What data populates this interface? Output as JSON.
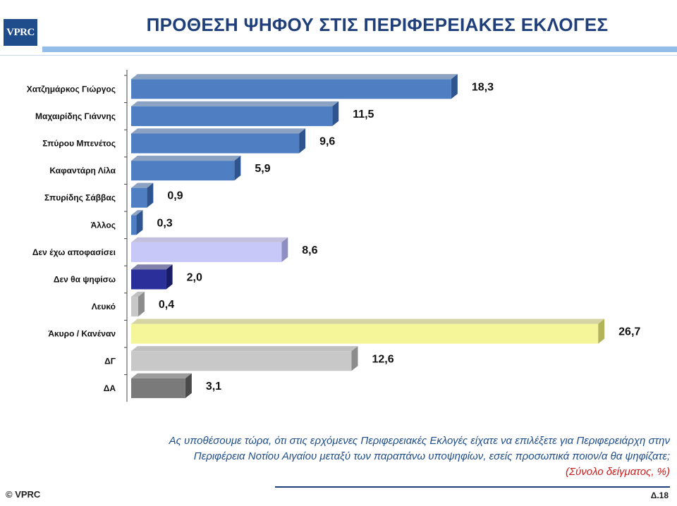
{
  "header": {
    "logo_text": "VPRC",
    "title": "ΠΡΟΘΕΣΗ ΨΗΦΟΥ ΣΤΙΣ ΠΕΡΙΦΕΡΕΙΑΚΕΣ ΕΚΛΟΓΕΣ"
  },
  "chart_data": {
    "type": "bar",
    "orientation": "horizontal",
    "categories": [
      "Χατζημάρκος Γιώργος",
      "Μαχαιρίδης Γιάννης",
      "Σπύρου Μπενέτος",
      "Καφαντάρη Λίλα",
      "Σπυρίδης Σάββας",
      "Άλλος",
      "Δεν έχω αποφασίσει",
      "Δεν θα ψηφίσω",
      "Λευκό",
      "Άκυρο / Κανέναν",
      "ΔΓ",
      "ΔΑ"
    ],
    "values": [
      18.3,
      11.5,
      9.6,
      5.9,
      0.9,
      0.3,
      8.6,
      2.0,
      0.4,
      26.7,
      12.6,
      3.1
    ],
    "value_labels": [
      "18,3",
      "11,5",
      "9,6",
      "5,9",
      "0,9",
      "0,3",
      "8,6",
      "2,0",
      "0,4",
      "26,7",
      "12,6",
      "3,1"
    ],
    "colors": [
      "#4f7fc2",
      "#4f7fc2",
      "#4f7fc2",
      "#4f7fc2",
      "#4f7fc2",
      "#4f7fc2",
      "#c8c8f8",
      "#2a2f9a",
      "#c8c8c8",
      "#f5f59a",
      "#c8c8c8",
      "#7a7a7a"
    ],
    "side_colors": [
      "#2e5590",
      "#2e5590",
      "#2e5590",
      "#2e5590",
      "#2e5590",
      "#2e5590",
      "#8e8ec2",
      "#181c66",
      "#8c8c8c",
      "#b3b35a",
      "#8c8c8c",
      "#4a4a4a"
    ],
    "xlim": [
      0,
      27
    ],
    "grid": false,
    "legend": "none"
  },
  "question": {
    "line1": "Ας υποθέσουμε τώρα, ότι στις ερχόμενες Περιφερειακές Εκλογές είχατε να επιλέξετε για Περιφερειάρχη στην",
    "line2": "Περιφέρεια Νοτίου Αιγαίου μεταξύ των παραπάνω υποψηφίων, εσείς προσωπικά ποιον/α θα ψηφίζατε;",
    "sample_note": "(Σύνολο δείγματος, %)"
  },
  "footer": {
    "copyright": "© VPRC",
    "page_number": "Δ.18"
  }
}
